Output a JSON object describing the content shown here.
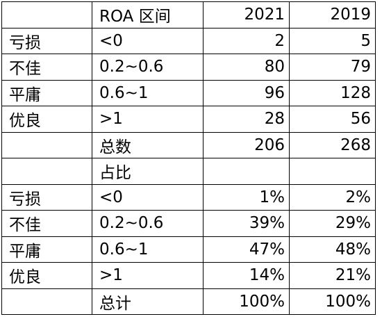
{
  "header": {
    "category": "",
    "range": "ROA 区间",
    "year_a": "2021",
    "year_b": "2019"
  },
  "counts": [
    {
      "category": "亏损",
      "range": "<0",
      "year_a": "2",
      "year_b": "5"
    },
    {
      "category": "不佳",
      "range": "0.2~0.6",
      "year_a": "80",
      "year_b": "79"
    },
    {
      "category": "平庸",
      "range": "0.6~1",
      "year_a": "96",
      "year_b": "128"
    },
    {
      "category": "优良",
      "range": ">1",
      "year_a": "28",
      "year_b": "56"
    }
  ],
  "total_row": {
    "category": "",
    "range": "总数",
    "year_a": "206",
    "year_b": "268"
  },
  "share_header": {
    "category": "",
    "range": "占比",
    "year_a": "",
    "year_b": ""
  },
  "shares": [
    {
      "category": "亏损",
      "range": "<0",
      "year_a": "1%",
      "year_b": "2%"
    },
    {
      "category": "不佳",
      "range": "0.2~0.6",
      "year_a": "39%",
      "year_b": "29%"
    },
    {
      "category": "平庸",
      "range": "0.6~1",
      "year_a": "47%",
      "year_b": "48%"
    },
    {
      "category": "优良",
      "range": ">1",
      "year_a": "14%",
      "year_b": "21%"
    }
  ],
  "share_total_row": {
    "category": "",
    "range": "总计",
    "year_a": "100%",
    "year_b": "100%"
  }
}
